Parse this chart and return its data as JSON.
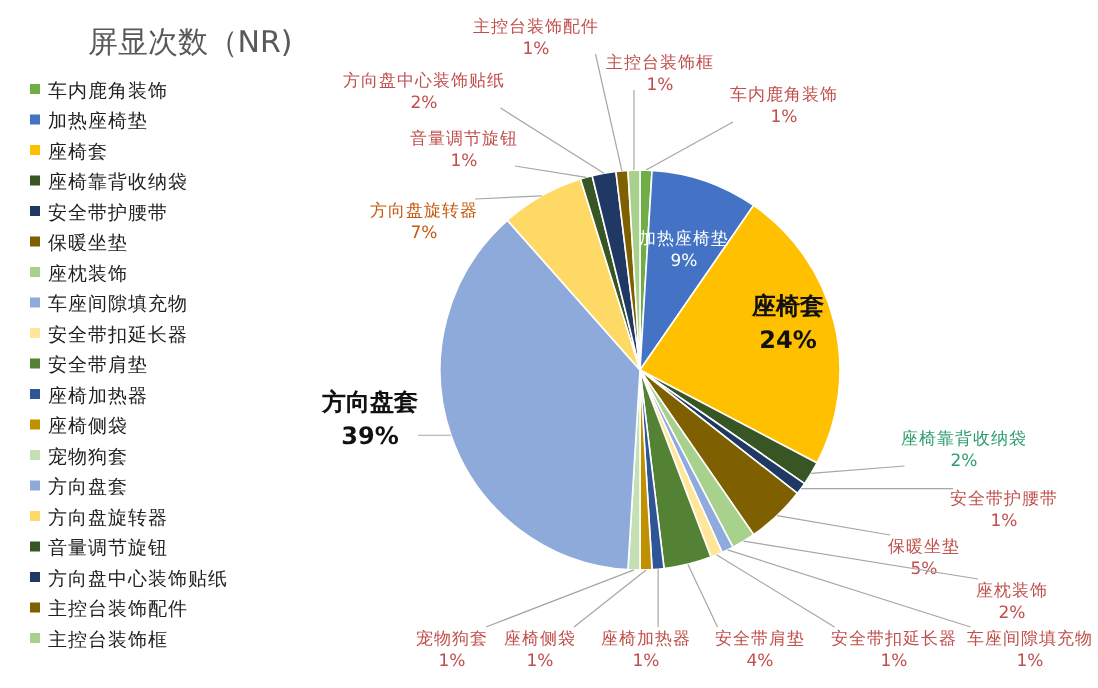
{
  "chart_data": {
    "type": "pie",
    "title": "屏显次数（NR)",
    "legend": "left",
    "categories": [
      "车内鹿角装饰",
      "加热座椅垫",
      "座椅套",
      "座椅靠背收纳袋",
      "安全带护腰带",
      "保暖坐垫",
      "座枕装饰",
      "车座间隙填充物",
      "安全带扣延长器",
      "安全带肩垫",
      "座椅加热器",
      "座椅侧袋",
      "宠物狗套",
      "方向盘套",
      "方向盘旋转器",
      "音量调节旋钮",
      "方向盘中心装饰贴纸",
      "主控台装饰配件",
      "主控台装饰框"
    ],
    "values": [
      1,
      9,
      24,
      2,
      1,
      5,
      2,
      1,
      1,
      4,
      1,
      1,
      1,
      39,
      7,
      1,
      2,
      1,
      1
    ],
    "value_labels": [
      "1%",
      "9%",
      "24%",
      "2%",
      "1%",
      "5%",
      "2%",
      "1%",
      "1%",
      "4%",
      "1%",
      "1%",
      "1%",
      "39%",
      "7%",
      "1%",
      "2%",
      "1%",
      "1%"
    ],
    "colors": [
      "#70ad47",
      "#4472c4",
      "#ffc000",
      "#375623",
      "#1f3864",
      "#7f6000",
      "#a9d18e",
      "#8faadc",
      "#ffe699",
      "#548235",
      "#2f5597",
      "#bf9000",
      "#c5e0b4",
      "#8eaadb",
      "#ffd966",
      "#375623",
      "#203864",
      "#7f6000",
      "#a9d18e"
    ]
  }
}
